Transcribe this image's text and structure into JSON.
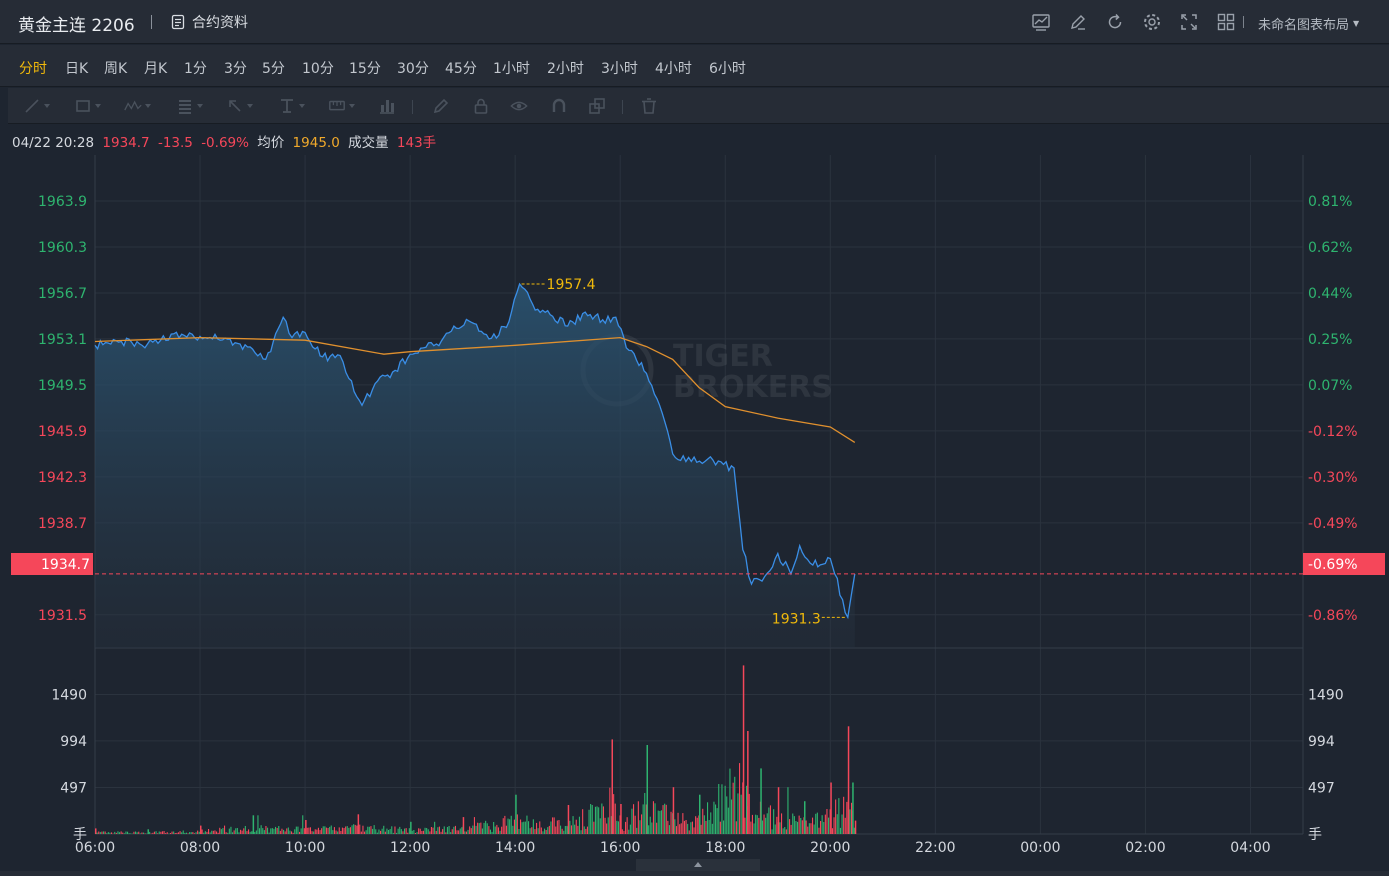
{
  "header": {
    "title": "黄金主连 2206",
    "contract_label": "合约资料",
    "layout_label": "未命名图表布局",
    "icons": [
      "indicator-icon",
      "draw-icon",
      "refresh-icon",
      "settings-icon",
      "fullscreen-icon",
      "grid-layout-icon"
    ]
  },
  "periods": [
    "分时",
    "日K",
    "周K",
    "月K",
    "1分",
    "3分",
    "5分",
    "10分",
    "15分",
    "30分",
    "45分",
    "1小时",
    "2小时",
    "3小时",
    "4小时",
    "6小时"
  ],
  "active_period": "分时",
  "info": {
    "datetime": "04/22 20:28",
    "price": "1934.7",
    "change": "-13.5",
    "change_pct": "-0.69%",
    "avg_label": "均价",
    "avg_value": "1945.0",
    "volume_label": "成交量",
    "volume_value": "143手"
  },
  "watermark": {
    "line1": "TIGER",
    "line2": "BROKERS"
  },
  "colors": {
    "up": "#2eb46f",
    "down": "#f5475a",
    "line": "#3a8ee6",
    "avg": "#e0902e",
    "highlight": "#f0b90b"
  },
  "chart_data": {
    "type": "line",
    "x_ticks": [
      "06:00",
      "08:00",
      "10:00",
      "12:00",
      "14:00",
      "16:00",
      "18:00",
      "20:00",
      "22:00",
      "00:00",
      "02:00",
      "04:00"
    ],
    "price_ticks": [
      "1963.9",
      "1960.3",
      "1956.7",
      "1953.1",
      "1949.5",
      "1945.9",
      "1942.3",
      "1938.7",
      "1931.5"
    ],
    "pct_ticks": [
      "0.81%",
      "0.62%",
      "0.44%",
      "0.25%",
      "0.07%",
      "-0.12%",
      "-0.30%",
      "-0.49%",
      "-0.86%"
    ],
    "current_price_label": "1934.7",
    "current_pct_label": "-0.69%",
    "max_label": "1957.4",
    "min_label": "1931.3",
    "volume_ticks": [
      "1490",
      "994",
      "497"
    ],
    "volume_unit": "手",
    "price_series": [
      [
        "06:00",
        1952.6
      ],
      [
        "06:30",
        1952.9
      ],
      [
        "07:00",
        1952.7
      ],
      [
        "07:30",
        1953.5
      ],
      [
        "08:00",
        1953.3
      ],
      [
        "08:20",
        1953.1
      ],
      [
        "08:40",
        1952.8
      ],
      [
        "09:00",
        1952.3
      ],
      [
        "09:15",
        1951.5
      ],
      [
        "09:35",
        1954.8
      ],
      [
        "09:45",
        1953.2
      ],
      [
        "10:00",
        1953.6
      ],
      [
        "10:20",
        1951.7
      ],
      [
        "10:40",
        1951.8
      ],
      [
        "10:50",
        1950.0
      ],
      [
        "11:05",
        1947.9
      ],
      [
        "11:20",
        1949.6
      ],
      [
        "11:40",
        1950.5
      ],
      [
        "12:00",
        1951.9
      ],
      [
        "12:30",
        1952.7
      ],
      [
        "12:50",
        1954.1
      ],
      [
        "13:10",
        1954.4
      ],
      [
        "13:30",
        1953.1
      ],
      [
        "13:50",
        1954.0
      ],
      [
        "14:05",
        1957.4
      ],
      [
        "14:20",
        1955.8
      ],
      [
        "14:40",
        1955.0
      ],
      [
        "15:00",
        1954.1
      ],
      [
        "15:20",
        1955.2
      ],
      [
        "15:40",
        1954.6
      ],
      [
        "15:55",
        1954.8
      ],
      [
        "16:10",
        1952.2
      ],
      [
        "16:30",
        1950.4
      ],
      [
        "16:45",
        1947.9
      ],
      [
        "17:00",
        1944.1
      ],
      [
        "17:15",
        1943.5
      ],
      [
        "17:40",
        1943.7
      ],
      [
        "18:10",
        1943.0
      ],
      [
        "18:20",
        1936.6
      ],
      [
        "18:30",
        1933.9
      ],
      [
        "18:45",
        1934.5
      ],
      [
        "19:00",
        1936.3
      ],
      [
        "19:15",
        1934.7
      ],
      [
        "19:25",
        1936.9
      ],
      [
        "19:40",
        1935.4
      ],
      [
        "20:00",
        1935.9
      ],
      [
        "20:05",
        1934.7
      ],
      [
        "20:20",
        1931.3
      ],
      [
        "20:28",
        1934.7
      ]
    ],
    "avg_series": [
      [
        "06:00",
        1952.9
      ],
      [
        "08:00",
        1953.2
      ],
      [
        "10:00",
        1953.0
      ],
      [
        "11:30",
        1951.9
      ],
      [
        "12:00",
        1952.1
      ],
      [
        "14:00",
        1952.6
      ],
      [
        "16:00",
        1953.2
      ],
      [
        "16:30",
        1952.5
      ],
      [
        "17:00",
        1951.5
      ],
      [
        "17:30",
        1949.3
      ],
      [
        "18:00",
        1947.8
      ],
      [
        "19:00",
        1946.9
      ],
      [
        "20:00",
        1946.2
      ],
      [
        "20:28",
        1945.0
      ]
    ],
    "prev_close": 1948.2,
    "price_ylim": [
      1928.9,
      1967.5
    ],
    "volume_ylim": [
      0,
      1986
    ],
    "volume_series": [
      [
        "06:00",
        60,
        "down"
      ],
      [
        "07:00",
        50,
        "up"
      ],
      [
        "08:00",
        90,
        "down"
      ],
      [
        "09:00",
        200,
        "up"
      ],
      [
        "10:00",
        150,
        "down"
      ],
      [
        "11:00",
        210,
        "down"
      ],
      [
        "12:00",
        130,
        "up"
      ],
      [
        "13:00",
        180,
        "down"
      ],
      [
        "14:00",
        420,
        "up"
      ],
      [
        "15:00",
        310,
        "down"
      ],
      [
        "15:50",
        1010,
        "down"
      ],
      [
        "16:00",
        320,
        "down"
      ],
      [
        "16:30",
        950,
        "up"
      ],
      [
        "17:00",
        500,
        "down"
      ],
      [
        "17:30",
        420,
        "up"
      ],
      [
        "18:20",
        1800,
        "down"
      ],
      [
        "18:25",
        1100,
        "down"
      ],
      [
        "18:40",
        700,
        "up"
      ],
      [
        "19:00",
        500,
        "down"
      ],
      [
        "19:30",
        350,
        "up"
      ],
      [
        "20:00",
        550,
        "down"
      ],
      [
        "20:20",
        1150,
        "down"
      ],
      [
        "20:25",
        550,
        "up"
      ],
      [
        "20:28",
        143,
        "down"
      ]
    ]
  }
}
